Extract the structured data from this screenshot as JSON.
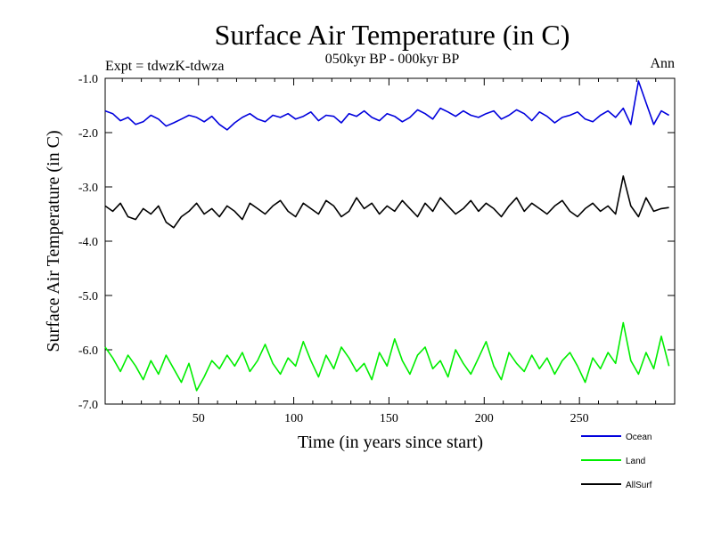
{
  "chart_data": {
    "type": "line",
    "title": "Surface Air Temperature (in C)",
    "subtitle": "050kyr BP - 000kyr BP",
    "top_left_label": "Expt = tdwzK-tdwza",
    "top_right_label": "Ann",
    "xlabel": "Time (in years since start)",
    "ylabel": "Surface Air Temperature (in C)",
    "xlim": [
      1,
      300
    ],
    "ylim": [
      -7.0,
      -1.0
    ],
    "xticks": [
      50,
      100,
      150,
      200,
      250
    ],
    "xtick_labels": [
      "50",
      "100",
      "150",
      "200",
      "250"
    ],
    "yticks": [
      -1.0,
      -2.0,
      -3.0,
      -4.0,
      -5.0,
      -6.0,
      -7.0
    ],
    "ytick_labels": [
      "-1.0",
      "-2.0",
      "-3.0",
      "-4.0",
      "-5.0",
      "-6.0",
      "-7.0"
    ],
    "grid": false,
    "legend_position": "bottom-right",
    "series": [
      {
        "name": "Ocean",
        "color": "#0000dd",
        "x_start": 1,
        "x_step": 4,
        "values": [
          -1.6,
          -1.65,
          -1.78,
          -1.72,
          -1.85,
          -1.8,
          -1.68,
          -1.75,
          -1.88,
          -1.82,
          -1.75,
          -1.68,
          -1.72,
          -1.8,
          -1.7,
          -1.85,
          -1.95,
          -1.82,
          -1.72,
          -1.65,
          -1.75,
          -1.8,
          -1.68,
          -1.72,
          -1.65,
          -1.75,
          -1.7,
          -1.62,
          -1.78,
          -1.68,
          -1.7,
          -1.82,
          -1.65,
          -1.7,
          -1.6,
          -1.72,
          -1.78,
          -1.65,
          -1.7,
          -1.8,
          -1.72,
          -1.58,
          -1.65,
          -1.75,
          -1.55,
          -1.62,
          -1.7,
          -1.6,
          -1.68,
          -1.72,
          -1.65,
          -1.6,
          -1.75,
          -1.68,
          -1.58,
          -1.65,
          -1.78,
          -1.62,
          -1.7,
          -1.82,
          -1.72,
          -1.68,
          -1.62,
          -1.75,
          -1.8,
          -1.68,
          -1.6,
          -1.72,
          -1.55,
          -1.85,
          -1.05,
          -1.45,
          -1.85,
          -1.6,
          -1.68
        ]
      },
      {
        "name": "AllSurf",
        "color": "#000000",
        "x_start": 1,
        "x_step": 4,
        "values": [
          -3.35,
          -3.45,
          -3.3,
          -3.55,
          -3.6,
          -3.4,
          -3.5,
          -3.35,
          -3.65,
          -3.75,
          -3.55,
          -3.45,
          -3.3,
          -3.5,
          -3.4,
          -3.55,
          -3.35,
          -3.45,
          -3.6,
          -3.3,
          -3.4,
          -3.5,
          -3.35,
          -3.25,
          -3.45,
          -3.55,
          -3.3,
          -3.4,
          -3.5,
          -3.25,
          -3.35,
          -3.55,
          -3.45,
          -3.2,
          -3.4,
          -3.3,
          -3.5,
          -3.35,
          -3.45,
          -3.25,
          -3.4,
          -3.55,
          -3.3,
          -3.45,
          -3.2,
          -3.35,
          -3.5,
          -3.4,
          -3.25,
          -3.45,
          -3.3,
          -3.4,
          -3.55,
          -3.35,
          -3.2,
          -3.45,
          -3.3,
          -3.4,
          -3.5,
          -3.35,
          -3.25,
          -3.45,
          -3.55,
          -3.4,
          -3.3,
          -3.45,
          -3.35,
          -3.5,
          -2.8,
          -3.35,
          -3.55,
          -3.2,
          -3.45,
          -3.4,
          -3.38
        ]
      },
      {
        "name": "Land",
        "color": "#00ee00",
        "x_start": 1,
        "x_step": 4,
        "values": [
          -5.95,
          -6.15,
          -6.4,
          -6.1,
          -6.3,
          -6.55,
          -6.2,
          -6.45,
          -6.1,
          -6.35,
          -6.6,
          -6.25,
          -6.75,
          -6.5,
          -6.2,
          -6.35,
          -6.1,
          -6.3,
          -6.05,
          -6.4,
          -6.2,
          -5.9,
          -6.25,
          -6.45,
          -6.15,
          -6.3,
          -5.85,
          -6.2,
          -6.5,
          -6.1,
          -6.35,
          -5.95,
          -6.15,
          -6.4,
          -6.25,
          -6.55,
          -6.05,
          -6.3,
          -5.8,
          -6.2,
          -6.45,
          -6.1,
          -5.95,
          -6.35,
          -6.2,
          -6.5,
          -6.0,
          -6.25,
          -6.45,
          -6.15,
          -5.85,
          -6.3,
          -6.55,
          -6.05,
          -6.25,
          -6.4,
          -6.1,
          -6.35,
          -6.15,
          -6.45,
          -6.2,
          -6.05,
          -6.3,
          -6.6,
          -6.15,
          -6.35,
          -6.05,
          -6.25,
          -5.5,
          -6.2,
          -6.45,
          -6.05,
          -6.35,
          -5.75,
          -6.3
        ]
      }
    ]
  }
}
